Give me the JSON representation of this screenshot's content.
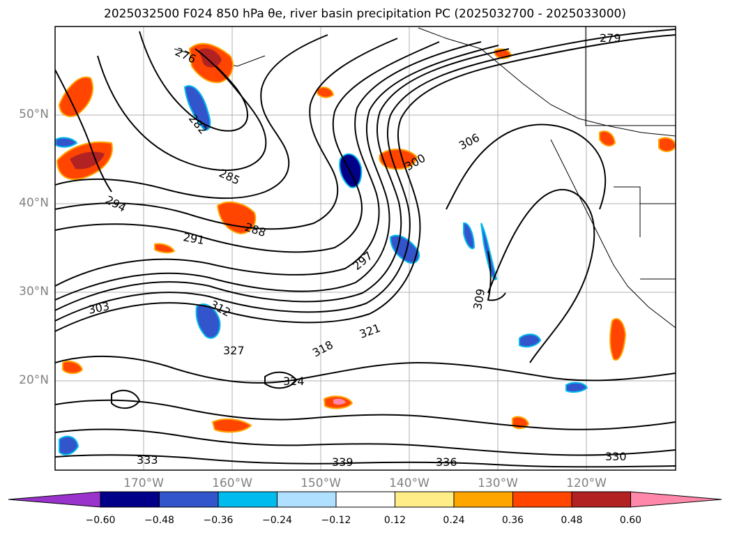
{
  "title": "2025032500 F024 850 hPa θe, river basin precipitation PC (2025032700 - 2025033000)",
  "latitude_labels": [
    "50°N",
    "40°N",
    "30°N",
    "20°N"
  ],
  "longitude_labels": [
    "170°W",
    "160°W",
    "150°W",
    "140°W",
    "130°W",
    "120°W"
  ],
  "contour_labels": [
    "276",
    "279",
    "282",
    "285",
    "288",
    "291",
    "294",
    "297",
    "300",
    "303",
    "306",
    "309",
    "312",
    "318",
    "321",
    "324",
    "327",
    "330",
    "333",
    "336",
    "339"
  ],
  "colorbar": {
    "ticks": [
      "−0.60",
      "−0.48",
      "−0.36",
      "−0.24",
      "−0.12",
      "0.12",
      "0.24",
      "0.36",
      "0.48",
      "0.60"
    ],
    "colors": [
      "#9933cc",
      "#000088",
      "#3355cc",
      "#00bbee",
      "#b0e0ff",
      "#ffffff",
      "#ffee88",
      "#ffa500",
      "#ff4500",
      "#b22222",
      "#ff88aa"
    ]
  },
  "colors": {
    "contour": "#000000",
    "grid": "#b0b0b0",
    "axis_tick_labels": "#808080"
  }
}
